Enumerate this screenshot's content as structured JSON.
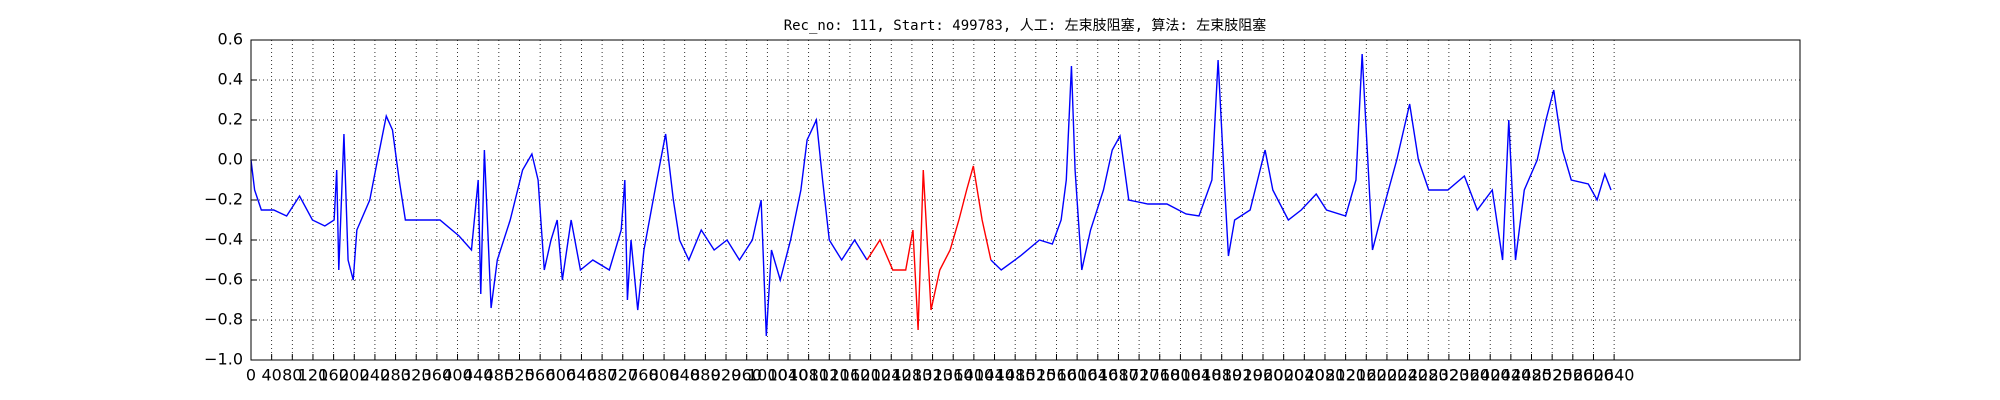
{
  "chart_data": {
    "type": "line",
    "title": "Rec_no: 111, Start: 499783, 人工: 左束肢阻塞, 算法: 左束肢阻塞",
    "xlim": [
      0,
      3000
    ],
    "ylim": [
      -1.0,
      0.6
    ],
    "xticks": [
      0,
      40,
      80,
      120,
      160,
      200,
      240,
      280,
      320,
      360,
      400,
      440,
      480,
      520,
      560,
      600,
      640,
      680,
      720,
      760,
      800,
      840,
      880,
      920,
      960,
      1000,
      1040,
      1080,
      1120,
      1160,
      1200,
      1240,
      1280,
      1320,
      1360,
      1400,
      1440,
      1480,
      1520,
      1560,
      1600,
      1640,
      1680,
      1720,
      1760,
      1800,
      1840,
      1880,
      1920,
      1960,
      2000,
      2040,
      2080,
      2120,
      2160,
      2200,
      2240,
      2280,
      2320,
      2360,
      2400,
      2440,
      2480,
      2520,
      2560,
      2600,
      2640
    ],
    "yticks": [
      {
        "value": -1.0,
        "label": "−1.0"
      },
      {
        "value": -0.8,
        "label": "−0.8"
      },
      {
        "value": -0.6,
        "label": "−0.6"
      },
      {
        "value": -0.4,
        "label": "−0.4"
      },
      {
        "value": -0.2,
        "label": "−0.2"
      },
      {
        "value": 0.0,
        "label": "0.0"
      },
      0.2,
      0.4,
      0.6
    ],
    "grid": true,
    "series": [
      {
        "color": "#0000ff",
        "x": [
          0,
          7,
          20,
          44,
          69,
          94,
          119,
          143,
          161,
          166,
          170,
          180,
          188,
          198,
          205,
          230,
          245,
          262,
          274,
          287,
          299,
          329,
          366,
          403,
          427,
          440,
          445,
          452,
          465,
          477,
          502,
          526,
          544,
          556,
          568,
          581,
          593,
          603,
          620,
          638,
          662,
          694,
          717,
          724,
          729,
          736,
          749,
          761,
          786,
          803,
          818,
          830,
          848,
          872,
          897,
          922,
          946,
          971,
          988,
          998,
          1008,
          1025,
          1045,
          1065,
          1077,
          1095,
          1107,
          1120,
          1144,
          1169,
          1193
        ],
        "values": [
          0.0,
          -0.15,
          -0.25,
          -0.25,
          -0.28,
          -0.18,
          -0.3,
          -0.33,
          -0.3,
          -0.05,
          -0.55,
          0.13,
          -0.5,
          -0.6,
          -0.35,
          -0.2,
          0.0,
          0.22,
          0.15,
          -0.1,
          -0.3,
          -0.3,
          -0.3,
          -0.38,
          -0.45,
          -0.1,
          -0.67,
          0.05,
          -0.74,
          -0.5,
          -0.3,
          -0.05,
          0.03,
          -0.1,
          -0.55,
          -0.4,
          -0.3,
          -0.6,
          -0.3,
          -0.55,
          -0.5,
          -0.55,
          -0.35,
          -0.1,
          -0.7,
          -0.4,
          -0.75,
          -0.45,
          -0.1,
          0.13,
          -0.2,
          -0.4,
          -0.5,
          -0.35,
          -0.45,
          -0.4,
          -0.5,
          -0.4,
          -0.2,
          -0.88,
          -0.45,
          -0.6,
          -0.4,
          -0.15,
          0.1,
          0.2,
          -0.1,
          -0.4,
          -0.5,
          -0.4,
          -0.5
        ]
      },
      {
        "color": "#ff0000",
        "x": [
          1193,
          1218,
          1243,
          1268,
          1282,
          1292,
          1302,
          1317,
          1334,
          1354,
          1371,
          1386,
          1399,
          1416,
          1433
        ],
        "values": [
          -0.5,
          -0.4,
          -0.55,
          -0.55,
          -0.35,
          -0.85,
          -0.05,
          -0.75,
          -0.55,
          -0.45,
          -0.3,
          -0.15,
          -0.03,
          -0.3,
          -0.5
        ]
      },
      {
        "color": "#0000ff",
        "x": [
          1433,
          1453,
          1490,
          1527,
          1552,
          1569,
          1579,
          1589,
          1596,
          1609,
          1626,
          1651,
          1668,
          1683,
          1700,
          1737,
          1774,
          1811,
          1836,
          1861,
          1873,
          1885,
          1893,
          1905,
          1935,
          1964,
          1979,
          2009,
          2034,
          2063,
          2083,
          2120,
          2140,
          2152,
          2165,
          2172,
          2187,
          2219,
          2244,
          2261,
          2281,
          2318,
          2350,
          2375,
          2404,
          2424,
          2436,
          2449,
          2466,
          2491,
          2508,
          2523,
          2540,
          2557,
          2590,
          2607,
          2622,
          2634
        ],
        "values": [
          -0.5,
          -0.55,
          -0.48,
          -0.4,
          -0.42,
          -0.3,
          -0.1,
          0.47,
          -0.05,
          -0.55,
          -0.35,
          -0.15,
          0.05,
          0.12,
          -0.2,
          -0.22,
          -0.22,
          -0.27,
          -0.28,
          -0.1,
          0.5,
          -0.1,
          -0.48,
          -0.3,
          -0.25,
          0.05,
          -0.15,
          -0.3,
          -0.25,
          -0.17,
          -0.25,
          -0.28,
          -0.1,
          0.53,
          -0.1,
          -0.45,
          -0.3,
          0.0,
          0.28,
          0.0,
          -0.15,
          -0.15,
          -0.08,
          -0.25,
          -0.15,
          -0.5,
          0.2,
          -0.5,
          -0.15,
          0.0,
          0.2,
          0.35,
          0.05,
          -0.1,
          -0.12,
          -0.2,
          -0.07,
          -0.15
        ]
      }
    ]
  }
}
